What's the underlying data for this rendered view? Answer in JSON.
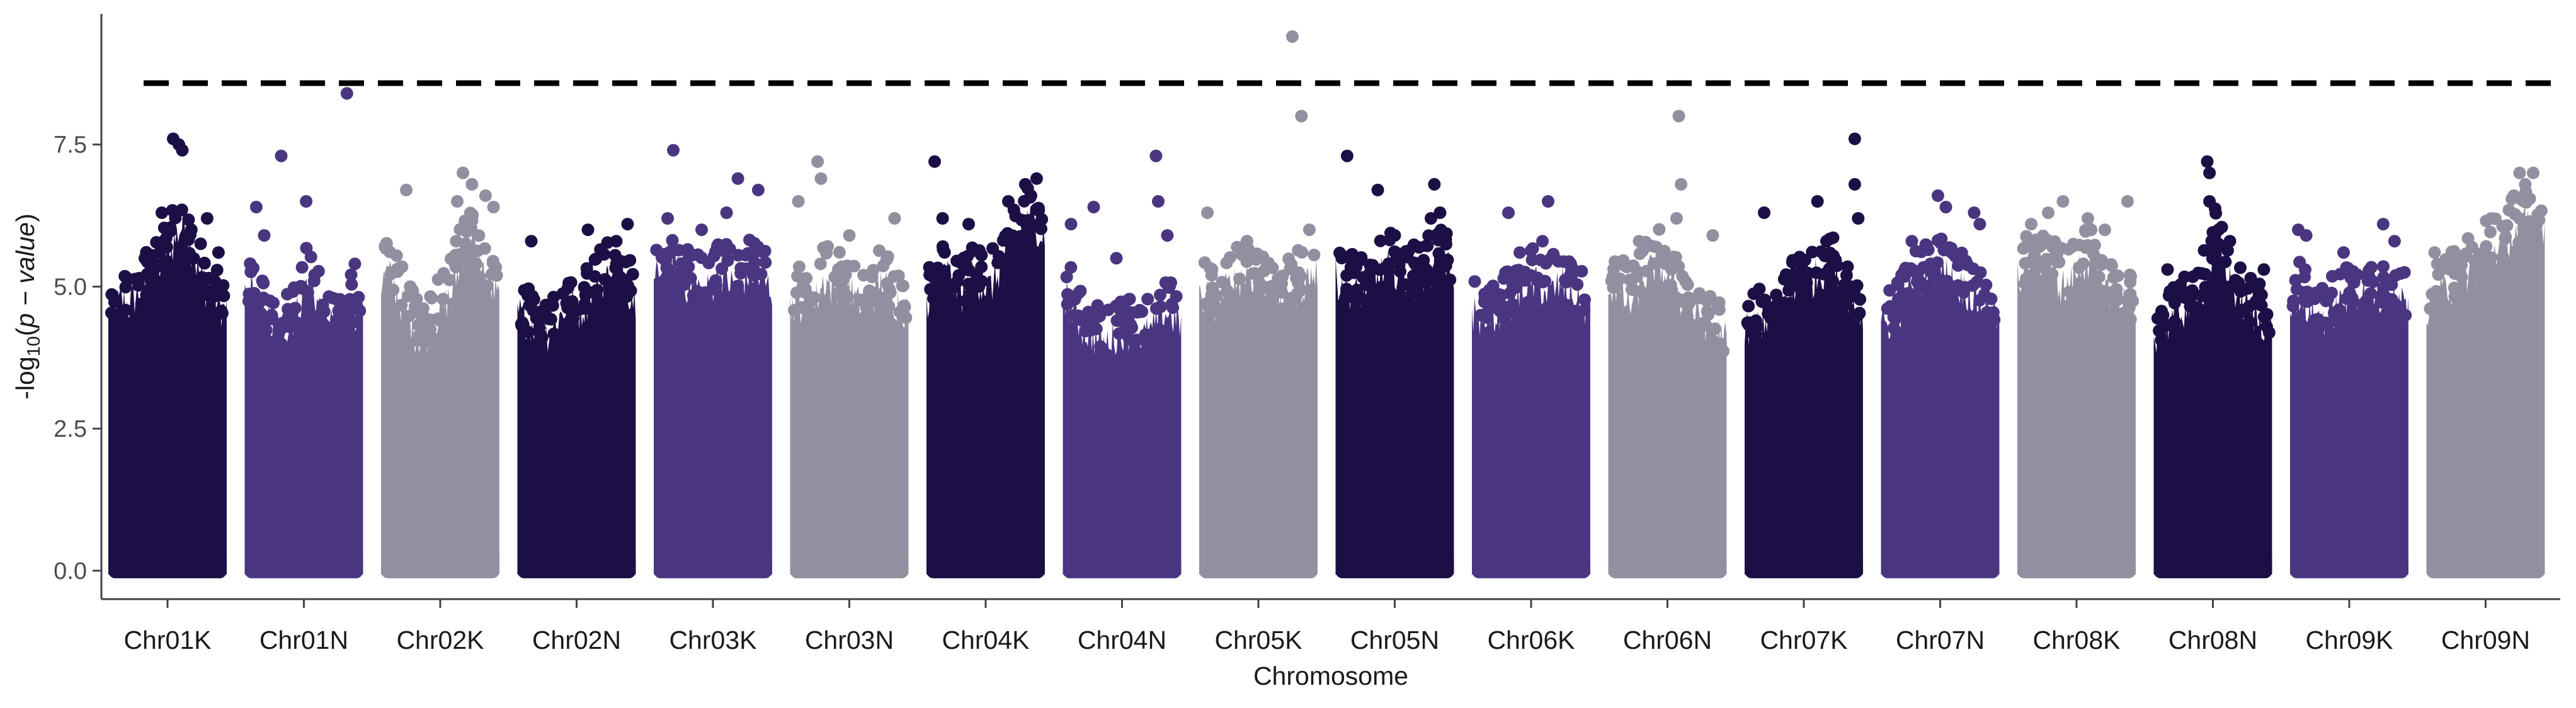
{
  "chart_data": {
    "type": "scatter",
    "subtype": "manhattan",
    "title": "",
    "xlabel": "Chromosome",
    "ylabel": "-log10(p - value)",
    "ylim": [
      -0.5,
      9.8
    ],
    "yticks": [
      0.0,
      2.5,
      5.0,
      7.5
    ],
    "ytick_labels": [
      "0.0",
      "2.5",
      "5.0",
      "7.5"
    ],
    "threshold": 8.58,
    "threshold_style": "dashed",
    "grid": false,
    "legend": "none",
    "colors": [
      "#1c0f45",
      "#4a3680",
      "#9290a0"
    ],
    "categories": [
      "Chr01K",
      "Chr01N",
      "Chr02K",
      "Chr02N",
      "Chr03K",
      "Chr03N",
      "Chr04K",
      "Chr04N",
      "Chr05K",
      "Chr05N",
      "Chr06K",
      "Chr06N",
      "Chr07K",
      "Chr07N",
      "Chr08K",
      "Chr08N",
      "Chr09K",
      "Chr09N"
    ],
    "series": [
      {
        "category": "Chr01K",
        "color_index": 0,
        "profile": [
          4.9,
          5.0,
          5.1,
          5.0,
          5.2,
          5.3,
          5.5,
          5.6,
          5.8,
          6.0,
          6.3,
          6.5,
          6.0,
          5.6,
          5.3,
          5.2,
          5.0,
          4.9
        ],
        "peaks": [
          [
            0.3,
            5.5
          ],
          [
            0.45,
            6.3
          ],
          [
            0.55,
            7.6
          ],
          [
            0.6,
            7.5
          ],
          [
            0.63,
            7.4
          ],
          [
            0.85,
            6.2
          ],
          [
            0.95,
            5.6
          ]
        ]
      },
      {
        "category": "Chr01N",
        "color_index": 1,
        "profile": [
          5.2,
          5.3,
          5.0,
          4.8,
          4.6,
          4.5,
          4.6,
          4.8,
          5.0,
          5.5,
          5.2,
          4.9,
          4.7,
          4.6,
          4.8,
          5.0,
          4.9,
          4.8
        ],
        "peaks": [
          [
            0.08,
            6.4
          ],
          [
            0.15,
            5.9
          ],
          [
            0.3,
            7.3
          ],
          [
            0.52,
            6.5
          ],
          [
            0.88,
            8.4
          ],
          [
            0.95,
            5.4
          ]
        ]
      },
      {
        "category": "Chr02K",
        "color_index": 2,
        "profile": [
          5.4,
          5.6,
          5.3,
          5.0,
          4.8,
          4.5,
          4.4,
          4.6,
          4.8,
          5.0,
          5.2,
          5.6,
          6.0,
          6.2,
          5.8,
          5.5,
          5.3,
          5.1
        ],
        "peaks": [
          [
            0.2,
            6.7
          ],
          [
            0.65,
            6.5
          ],
          [
            0.7,
            7.0
          ],
          [
            0.78,
            6.8
          ],
          [
            0.9,
            6.6
          ],
          [
            0.97,
            6.4
          ]
        ]
      },
      {
        "category": "Chr02N",
        "color_index": 0,
        "profile": [
          4.9,
          4.8,
          4.7,
          4.6,
          4.5,
          4.6,
          4.8,
          5.0,
          5.0,
          4.9,
          5.1,
          5.2,
          5.4,
          5.5,
          5.6,
          5.5,
          5.3,
          5.1
        ],
        "peaks": [
          [
            0.1,
            5.8
          ],
          [
            0.6,
            6.0
          ],
          [
            0.85,
            5.8
          ],
          [
            0.95,
            6.1
          ]
        ]
      },
      {
        "category": "Chr03K",
        "color_index": 1,
        "profile": [
          5.4,
          5.6,
          5.8,
          6.0,
          5.6,
          5.3,
          5.4,
          5.2,
          5.3,
          5.5,
          5.6,
          5.4,
          5.3,
          5.5,
          5.6,
          5.5,
          5.4,
          5.3
        ],
        "peaks": [
          [
            0.15,
            7.4
          ],
          [
            0.1,
            6.2
          ],
          [
            0.4,
            6.0
          ],
          [
            0.62,
            6.3
          ],
          [
            0.72,
            6.9
          ],
          [
            0.9,
            6.7
          ]
        ]
      },
      {
        "category": "Chr03N",
        "color_index": 2,
        "profile": [
          5.0,
          5.1,
          5.0,
          4.9,
          5.2,
          5.5,
          5.3,
          5.4,
          5.5,
          5.2,
          5.0,
          4.9,
          5.2,
          5.4,
          5.3,
          5.1,
          5.0,
          4.9
        ],
        "peaks": [
          [
            0.05,
            6.5
          ],
          [
            0.22,
            7.2
          ],
          [
            0.25,
            6.9
          ],
          [
            0.5,
            5.9
          ],
          [
            0.9,
            6.2
          ]
        ]
      },
      {
        "category": "Chr04K",
        "color_index": 0,
        "profile": [
          5.1,
          5.3,
          5.5,
          5.6,
          5.4,
          5.2,
          5.3,
          5.5,
          5.4,
          5.3,
          5.5,
          5.8,
          6.0,
          6.2,
          6.4,
          6.5,
          6.4,
          6.2
        ],
        "peaks": [
          [
            0.05,
            7.2
          ],
          [
            0.12,
            6.2
          ],
          [
            0.35,
            6.1
          ],
          [
            0.7,
            6.5
          ],
          [
            0.85,
            6.8
          ],
          [
            0.9,
            6.6
          ],
          [
            0.95,
            6.9
          ]
        ]
      },
      {
        "category": "Chr04N",
        "color_index": 1,
        "profile": [
          5.3,
          5.0,
          4.8,
          4.6,
          4.5,
          4.4,
          4.3,
          4.4,
          4.5,
          4.6,
          4.5,
          4.4,
          4.5,
          4.6,
          4.8,
          4.9,
          4.8,
          4.7
        ],
        "peaks": [
          [
            0.05,
            6.1
          ],
          [
            0.25,
            6.4
          ],
          [
            0.45,
            5.5
          ],
          [
            0.8,
            7.3
          ],
          [
            0.82,
            6.5
          ],
          [
            0.9,
            5.9
          ]
        ]
      },
      {
        "category": "Chr05K",
        "color_index": 2,
        "profile": [
          5.1,
          5.2,
          5.0,
          5.2,
          5.3,
          5.4,
          5.5,
          5.6,
          5.5,
          5.4,
          5.3,
          5.2,
          5.1,
          5.2,
          5.3,
          5.4,
          5.5,
          5.6
        ],
        "peaks": [
          [
            0.05,
            6.3
          ],
          [
            0.4,
            5.8
          ],
          [
            0.8,
            9.4
          ],
          [
            0.88,
            8.0
          ],
          [
            0.95,
            6.0
          ]
        ]
      },
      {
        "category": "Chr05N",
        "color_index": 0,
        "profile": [
          5.5,
          5.4,
          5.3,
          5.2,
          5.3,
          5.4,
          5.5,
          5.6,
          5.7,
          5.6,
          5.5,
          5.4,
          5.5,
          5.6,
          5.7,
          5.8,
          5.7,
          5.6
        ],
        "peaks": [
          [
            0.08,
            7.3
          ],
          [
            0.35,
            6.7
          ],
          [
            0.5,
            5.9
          ],
          [
            0.82,
            6.2
          ],
          [
            0.85,
            6.8
          ],
          [
            0.9,
            6.3
          ]
        ]
      },
      {
        "category": "Chr06K",
        "color_index": 1,
        "profile": [
          4.9,
          4.8,
          4.7,
          4.8,
          4.9,
          5.0,
          5.1,
          5.2,
          5.3,
          5.4,
          5.3,
          5.2,
          5.3,
          5.4,
          5.2,
          5.1,
          5.0,
          4.9
        ],
        "peaks": [
          [
            0.3,
            6.3
          ],
          [
            0.4,
            5.6
          ],
          [
            0.6,
            5.8
          ],
          [
            0.65,
            6.5
          ],
          [
            0.85,
            5.4
          ]
        ]
      },
      {
        "category": "Chr06N",
        "color_index": 2,
        "profile": [
          5.3,
          5.4,
          5.2,
          5.0,
          5.2,
          5.5,
          5.6,
          5.8,
          5.6,
          5.4,
          5.2,
          5.0,
          4.9,
          4.8,
          4.7,
          4.6,
          4.5,
          4.4
        ],
        "peaks": [
          [
            0.25,
            5.8
          ],
          [
            0.6,
            8.0
          ],
          [
            0.62,
            6.8
          ],
          [
            0.58,
            6.2
          ],
          [
            0.9,
            5.9
          ]
        ]
      },
      {
        "category": "Chr07K",
        "color_index": 0,
        "profile": [
          4.5,
          4.6,
          4.7,
          4.8,
          4.9,
          5.0,
          5.1,
          5.2,
          5.3,
          5.4,
          5.5,
          5.6,
          5.7,
          5.6,
          5.4,
          5.2,
          5.0,
          4.9
        ],
        "peaks": [
          [
            0.15,
            6.3
          ],
          [
            0.62,
            6.5
          ],
          [
            0.7,
            5.8
          ],
          [
            0.95,
            7.6
          ],
          [
            0.95,
            6.8
          ],
          [
            0.98,
            6.2
          ]
        ]
      },
      {
        "category": "Chr07N",
        "color_index": 1,
        "profile": [
          4.6,
          4.7,
          4.8,
          5.0,
          5.2,
          5.4,
          5.5,
          5.6,
          5.7,
          5.6,
          5.5,
          5.4,
          5.3,
          5.2,
          5.1,
          5.0,
          4.9,
          4.8
        ],
        "peaks": [
          [
            0.25,
            5.8
          ],
          [
            0.48,
            6.6
          ],
          [
            0.55,
            6.4
          ],
          [
            0.8,
            6.3
          ],
          [
            0.85,
            6.1
          ]
        ]
      },
      {
        "category": "Chr08K",
        "color_index": 2,
        "profile": [
          5.5,
          5.6,
          5.7,
          5.8,
          5.9,
          5.6,
          5.4,
          5.3,
          5.5,
          5.7,
          5.8,
          5.7,
          5.5,
          5.3,
          5.2,
          5.1,
          5.0,
          4.9
        ],
        "peaks": [
          [
            0.1,
            6.1
          ],
          [
            0.25,
            6.3
          ],
          [
            0.38,
            6.5
          ],
          [
            0.6,
            6.2
          ],
          [
            0.75,
            6.0
          ],
          [
            0.95,
            6.5
          ]
        ]
      },
      {
        "category": "Chr08N",
        "color_index": 0,
        "profile": [
          4.5,
          4.6,
          4.7,
          4.8,
          4.9,
          5.0,
          5.1,
          5.3,
          5.6,
          6.2,
          5.8,
          5.4,
          5.2,
          5.0,
          4.9,
          4.8,
          4.7,
          4.6
        ],
        "peaks": [
          [
            0.1,
            5.3
          ],
          [
            0.45,
            7.2
          ],
          [
            0.47,
            7.0
          ],
          [
            0.47,
            6.5
          ],
          [
            0.55,
            6.0
          ],
          [
            0.65,
            5.8
          ],
          [
            0.95,
            5.3
          ]
        ]
      },
      {
        "category": "Chr09K",
        "color_index": 1,
        "profile": [
          5.1,
          5.2,
          5.0,
          4.9,
          4.8,
          4.8,
          4.9,
          5.0,
          5.1,
          5.2,
          5.3,
          5.2,
          5.1,
          5.0,
          5.1,
          5.2,
          5.1,
          5.0
        ],
        "peaks": [
          [
            0.05,
            6.0
          ],
          [
            0.12,
            5.9
          ],
          [
            0.45,
            5.6
          ],
          [
            0.8,
            6.1
          ],
          [
            0.9,
            5.8
          ]
        ]
      },
      {
        "category": "Chr09N",
        "color_index": 2,
        "profile": [
          5.0,
          5.1,
          5.2,
          5.3,
          5.4,
          5.5,
          5.6,
          5.7,
          5.8,
          5.9,
          6.0,
          6.1,
          6.2,
          6.3,
          6.4,
          6.5,
          6.6,
          6.4
        ],
        "peaks": [
          [
            0.05,
            5.6
          ],
          [
            0.55,
            6.2
          ],
          [
            0.75,
            6.6
          ],
          [
            0.8,
            7.0
          ],
          [
            0.85,
            6.8
          ],
          [
            0.92,
            7.0
          ]
        ]
      }
    ]
  }
}
